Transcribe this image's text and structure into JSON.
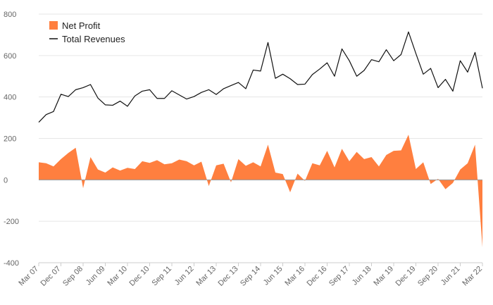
{
  "chart_data": {
    "type": "area",
    "title": "",
    "xlabel": "",
    "ylabel": "",
    "ylim": [
      -400,
      800
    ],
    "y_ticks": [
      "800",
      "600",
      "400",
      "200",
      "0",
      "-200",
      "-400"
    ],
    "x_ticks": [
      "Mar 07",
      "Dec 07",
      "Sep 08",
      "Jun 09",
      "Mar 10",
      "Dec 10",
      "Sep 11",
      "Jun 12",
      "Mar 13",
      "Dec 13",
      "Sep 14",
      "Jun 15",
      "Mar 16",
      "Dec 16",
      "Sep 17",
      "Jun 18",
      "Mar 19",
      "Dec 19",
      "Sep 20",
      "Jun 21",
      "Mar 22"
    ],
    "x": [
      "Mar 07",
      "Jun 07",
      "Sep 07",
      "Dec 07",
      "Mar 08",
      "Jun 08",
      "Sep 08",
      "Dec 08",
      "Mar 09",
      "Jun 09",
      "Sep 09",
      "Dec 09",
      "Mar 10",
      "Jun 10",
      "Sep 10",
      "Dec 10",
      "Mar 11",
      "Jun 11",
      "Sep 11",
      "Dec 11",
      "Mar 12",
      "Jun 12",
      "Sep 12",
      "Dec 12",
      "Mar 13",
      "Jun 13",
      "Sep 13",
      "Dec 13",
      "Mar 14",
      "Jun 14",
      "Sep 14",
      "Dec 14",
      "Mar 15",
      "Jun 15",
      "Sep 15",
      "Dec 15",
      "Mar 16",
      "Jun 16",
      "Sep 16",
      "Dec 16",
      "Mar 17",
      "Jun 17",
      "Sep 17",
      "Dec 17",
      "Mar 18",
      "Jun 18",
      "Sep 18",
      "Dec 18",
      "Mar 19",
      "Jun 19",
      "Sep 19",
      "Dec 19",
      "Mar 20",
      "Jun 20",
      "Sep 20",
      "Dec 20",
      "Mar 21",
      "Jun 21",
      "Sep 21",
      "Dec 21",
      "Mar 22"
    ],
    "series": [
      {
        "name": "Net Profit",
        "style": "area",
        "color": "#ff7f3f",
        "values": [
          85,
          80,
          65,
          100,
          130,
          155,
          -40,
          110,
          50,
          35,
          60,
          45,
          58,
          52,
          90,
          82,
          95,
          75,
          80,
          98,
          90,
          70,
          88,
          -30,
          70,
          78,
          -12,
          100,
          68,
          85,
          65,
          170,
          35,
          28,
          -60,
          30,
          -5,
          80,
          70,
          140,
          60,
          150,
          90,
          135,
          100,
          110,
          65,
          120,
          140,
          142,
          218,
          52,
          85,
          -20,
          5,
          -45,
          -15,
          50,
          80,
          170,
          -325
        ]
      },
      {
        "name": "Total Revenues",
        "style": "line",
        "color": "#111111",
        "values": [
          278,
          315,
          330,
          413,
          402,
          435,
          445,
          460,
          395,
          362,
          360,
          380,
          355,
          405,
          428,
          435,
          393,
          393,
          430,
          410,
          390,
          402,
          422,
          435,
          412,
          440,
          455,
          470,
          440,
          530,
          525,
          663,
          490,
          510,
          488,
          460,
          462,
          508,
          535,
          565,
          500,
          632,
          575,
          500,
          528,
          580,
          570,
          628,
          575,
          605,
          714,
          610,
          510,
          538,
          445,
          485,
          428,
          575,
          520,
          615,
          442
        ]
      }
    ],
    "legend": {
      "position": "top-left",
      "items": [
        {
          "label": "Net Profit",
          "marker": "square",
          "color": "#ff7f3f"
        },
        {
          "label": "Total Revenues",
          "marker": "line",
          "color": "#111111"
        }
      ]
    },
    "grid": true
  }
}
